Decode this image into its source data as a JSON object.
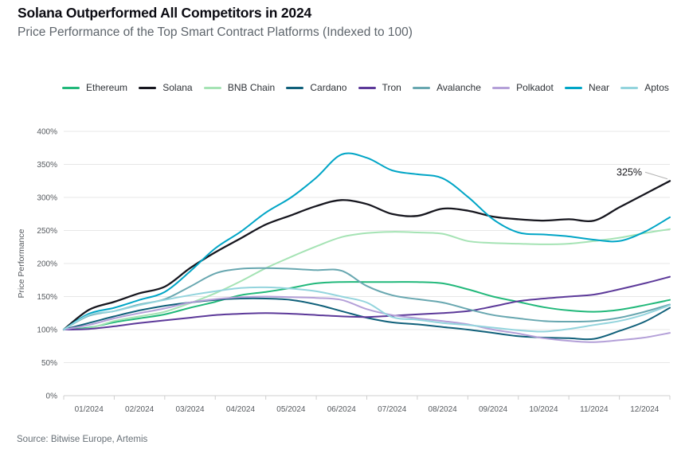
{
  "header": {
    "title": "Solana Outperformed All Competitors in 2024",
    "subtitle": "Price Performance of the Top Smart Contract Platforms (Indexed to 100)"
  },
  "source": "Source: Bitwise Europe, Artemis",
  "annotation": {
    "series": "Solana",
    "label": "325%"
  },
  "colors": {
    "title_text": "#0b0b12",
    "subtitle_text": "#5d646b",
    "axis_text": "#55595e",
    "gridline": "#e7e7e7",
    "baseline": "#cfcfcf",
    "leader_line": "#b3b3b3"
  },
  "chart_data": {
    "type": "line",
    "title": "Solana Outperformed All Competitors in 2024",
    "subtitle": "Price Performance of the Top Smart Contract Platforms (Indexed to 100)",
    "xlabel": "",
    "ylabel": "Price Performance",
    "ylim": [
      0,
      400
    ],
    "ytick_step": 50,
    "ytick_suffix": "%",
    "grid": "horizontal",
    "legend_position": "top",
    "x_tick_labels": [
      "01/2024",
      "02/2024",
      "03/2024",
      "04/2024",
      "05/2024",
      "06/2024",
      "07/2024",
      "08/2024",
      "09/2024",
      "10/2024",
      "11/2024",
      "12/2024"
    ],
    "x_samples_per_month": 2,
    "series": [
      {
        "name": "Ethereum",
        "color": "#21b87a",
        "values": [
          100,
          103,
          111,
          117,
          123,
          133,
          142,
          152,
          157,
          163,
          170,
          172,
          172,
          172,
          172,
          170,
          161,
          150,
          142,
          134,
          129,
          127,
          130,
          137,
          145
        ]
      },
      {
        "name": "Solana",
        "color": "#16161e",
        "values": [
          100,
          130,
          142,
          155,
          165,
          193,
          217,
          238,
          259,
          273,
          287,
          296,
          290,
          275,
          272,
          283,
          280,
          271,
          267,
          265,
          267,
          265,
          285,
          305,
          325
        ]
      },
      {
        "name": "BNB Chain",
        "color": "#a5e3b4",
        "values": [
          100,
          102,
          113,
          120,
          127,
          140,
          155,
          173,
          193,
          210,
          226,
          240,
          246,
          248,
          247,
          245,
          234,
          231,
          230,
          229,
          230,
          234,
          239,
          246,
          252
        ]
      },
      {
        "name": "Cardano",
        "color": "#10607a",
        "values": [
          100,
          110,
          120,
          129,
          136,
          141,
          145,
          147,
          147,
          145,
          138,
          128,
          118,
          111,
          108,
          104,
          100,
          95,
          90,
          88,
          87,
          86,
          98,
          112,
          133
        ]
      },
      {
        "name": "Tron",
        "color": "#5c3999",
        "values": [
          100,
          101,
          105,
          110,
          114,
          118,
          122,
          124,
          125,
          124,
          122,
          120,
          119,
          121,
          123,
          125,
          128,
          135,
          143,
          147,
          150,
          153,
          161,
          170,
          180
        ]
      },
      {
        "name": "Avalanche",
        "color": "#68a7b0",
        "values": [
          100,
          121,
          128,
          138,
          146,
          165,
          185,
          192,
          193,
          192,
          190,
          189,
          166,
          152,
          146,
          141,
          131,
          122,
          117,
          113,
          112,
          113,
          118,
          127,
          138
        ]
      },
      {
        "name": "Polkadot",
        "color": "#b4a0d8",
        "values": [
          100,
          107,
          117,
          125,
          132,
          141,
          146,
          149,
          150,
          149,
          148,
          145,
          131,
          122,
          117,
          113,
          108,
          100,
          94,
          87,
          83,
          81,
          84,
          88,
          95
        ]
      },
      {
        "name": "Near",
        "color": "#00a5c6",
        "values": [
          100,
          124,
          133,
          145,
          157,
          188,
          223,
          248,
          277,
          300,
          330,
          365,
          360,
          341,
          335,
          329,
          301,
          267,
          247,
          244,
          241,
          236,
          234,
          248,
          270
        ]
      },
      {
        "name": "Aptos",
        "color": "#93d4dd",
        "values": [
          100,
          122,
          128,
          137,
          145,
          152,
          158,
          163,
          164,
          162,
          158,
          150,
          141,
          119,
          115,
          110,
          107,
          103,
          99,
          97,
          101,
          107,
          113,
          123,
          137
        ]
      }
    ]
  }
}
